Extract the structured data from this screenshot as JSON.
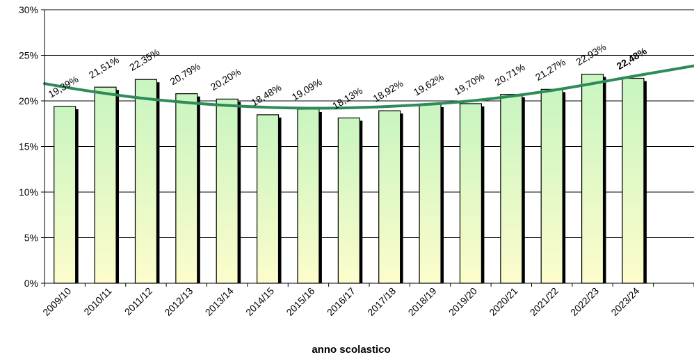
{
  "chart_data": {
    "type": "bar",
    "title": "",
    "xlabel": "anno scolastico",
    "ylabel": "",
    "ylim": [
      0,
      30
    ],
    "yticks": [
      0,
      5,
      10,
      15,
      20,
      25,
      30
    ],
    "ytick_suffix": "%",
    "categories": [
      "2009/10",
      "2010/11",
      "2011/12",
      "2012/13",
      "2013/14",
      "2014/15",
      "2015/16",
      "2016/17",
      "2017/18",
      "2018/19",
      "2019/20",
      "2020/21",
      "2021/22",
      "2022/23",
      "2023/24"
    ],
    "values": [
      19.39,
      21.51,
      22.35,
      20.79,
      20.2,
      18.48,
      19.09,
      18.13,
      18.92,
      19.62,
      19.7,
      20.71,
      21.27,
      22.93,
      22.48
    ],
    "data_labels": [
      "19,39%",
      "21,51%",
      "22,35%",
      "20,79%",
      "20,20%",
      "18,48%",
      "19,09%",
      "18,13%",
      "18,92%",
      "19,62%",
      "19,70%",
      "20,71%",
      "21,27%",
      "22,93%",
      "22,48%"
    ],
    "highlight_index": 14,
    "trendline": {
      "type": "polynomial",
      "color": "#2e8b57",
      "points": [
        {
          "x": -0.5,
          "y": 21.9
        },
        {
          "x": 0.5,
          "y": 21.15
        },
        {
          "x": 2,
          "y": 20.25
        },
        {
          "x": 4,
          "y": 19.5
        },
        {
          "x": 6,
          "y": 19.2
        },
        {
          "x": 8,
          "y": 19.4
        },
        {
          "x": 10,
          "y": 20.0
        },
        {
          "x": 12,
          "y": 21.15
        },
        {
          "x": 14,
          "y": 22.7
        },
        {
          "x": 15.5,
          "y": 23.85
        }
      ]
    },
    "grid": true,
    "colors": {
      "bar_top": "#c8f5c0",
      "bar_bottom": "#fdfccc",
      "bar_stroke": "#000000",
      "bar_shadow": "#000000",
      "gridline": "#000000"
    }
  }
}
